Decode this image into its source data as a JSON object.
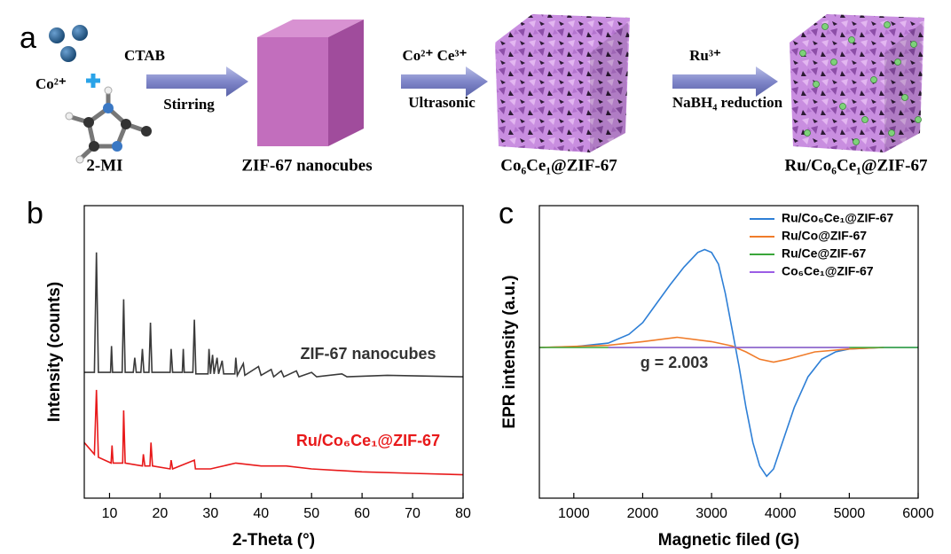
{
  "schematic": {
    "panel_label": "a",
    "reagent_1": "CTAB",
    "reagent_2": "Co²⁺",
    "ligand": "2-MI",
    "step_1": "Stirring",
    "product_1": "ZIF-67 nanocubes",
    "reagent_3": "Co²⁺ Ce³⁺",
    "step_2": "Ultrasonic",
    "product_2": "Co₆Ce₁@ZIF-67",
    "reagent_4": "Ru³⁺",
    "step_3": "NaBH₄ reduction",
    "product_3": "Ru/Co₆Ce₁@ZIF-67"
  },
  "chart_data": [
    {
      "type": "line",
      "panel_label": "b",
      "xlabel": "2-Theta (°)",
      "ylabel": "Intensity (counts)",
      "xlim": [
        5,
        80
      ],
      "ylim": [
        0,
        100
      ],
      "xticks": [
        10,
        20,
        30,
        40,
        50,
        60,
        70,
        80
      ],
      "annotations": [
        {
          "text": "ZIF-67 nanocubes",
          "color": "#333333"
        },
        {
          "text": "Ru/Co₆Ce₁@ZIF-67",
          "color": "#e8191a"
        }
      ],
      "series": [
        {
          "name": "ZIF-67 nanocubes",
          "color": "#3a3a3a",
          "x": [
            5,
            7.0,
            7.4,
            7.8,
            10.2,
            10.4,
            10.6,
            12.5,
            12.8,
            13.1,
            14.7,
            15,
            15.3,
            16.2,
            16.5,
            16.8,
            17.8,
            18.1,
            18.4,
            22,
            22.2,
            22.5,
            24.4,
            24.6,
            24.8,
            26.5,
            26.8,
            27.1,
            29.5,
            29.7,
            30,
            30.4,
            30.7,
            31.3,
            31.6,
            32.3,
            32.6,
            34.8,
            35,
            35.3,
            36.5,
            36.8,
            39.5,
            40,
            42,
            42.5,
            44,
            44.5,
            47,
            47.5,
            50,
            51,
            56,
            57,
            65,
            80
          ],
          "values": [
            43,
            43,
            84,
            43,
            43,
            52,
            43,
            43,
            68,
            43,
            43,
            48,
            43,
            43,
            51,
            43,
            43,
            60,
            43,
            43,
            51,
            43,
            43,
            51,
            43,
            43,
            61,
            42.5,
            42.5,
            51,
            42.5,
            49,
            42.5,
            48,
            42.5,
            47,
            42.5,
            42.5,
            48,
            42,
            46,
            42,
            45,
            42,
            44,
            41.5,
            43.5,
            41.5,
            43.5,
            41.5,
            43,
            41.5,
            42.5,
            41.5,
            42,
            41.5
          ]
        },
        {
          "name": "Ru/Co₆Ce₁@ZIF-67",
          "color": "#e8191a",
          "x": [
            5,
            7,
            7.4,
            7.8,
            10.3,
            10.5,
            10.7,
            12.6,
            12.8,
            13.1,
            16.5,
            16.7,
            17,
            18,
            18.2,
            18.5,
            22,
            22.2,
            22.5,
            26.8,
            27,
            30,
            35,
            40,
            45,
            50,
            60,
            70,
            80
          ],
          "values": [
            19,
            15,
            37,
            14,
            12,
            18,
            12,
            12,
            30,
            12,
            11,
            15,
            11,
            11,
            19,
            11,
            10,
            13,
            10,
            13,
            10,
            10,
            12,
            11,
            11,
            10,
            9,
            8.5,
            8
          ]
        }
      ]
    },
    {
      "type": "line",
      "panel_label": "c",
      "xlabel": "Magnetic filed (G)",
      "ylabel": "EPR intensity (a.u.)",
      "xlim": [
        500,
        6000
      ],
      "ylim": [
        -100,
        100
      ],
      "xticks": [
        1000,
        2000,
        3000,
        4000,
        5000,
        6000
      ],
      "legend": "upper right",
      "annotations": [
        {
          "text": "g = 2.003",
          "color": "#333333"
        }
      ],
      "series": [
        {
          "name": "Ru/Co₆Ce₁@ZIF-67",
          "color": "#2e7fd6",
          "x": [
            500,
            1000,
            1500,
            1800,
            2000,
            2200,
            2400,
            2600,
            2800,
            2900,
            3000,
            3100,
            3200,
            3300,
            3400,
            3500,
            3600,
            3700,
            3800,
            3900,
            4000,
            4200,
            4400,
            4600,
            4800,
            5000,
            5500,
            6000
          ],
          "values": [
            3,
            3.5,
            6,
            12,
            20,
            33,
            46,
            58,
            68,
            70,
            68,
            60,
            40,
            15,
            -10,
            -38,
            -62,
            -78,
            -85,
            -80,
            -66,
            -38,
            -17,
            -5,
            0,
            2,
            3,
            3
          ]
        },
        {
          "name": "Ru/Co@ZIF-67",
          "color": "#f07c2a",
          "x": [
            500,
            1500,
            2000,
            2500,
            3000,
            3300,
            3500,
            3700,
            3900,
            4100,
            4500,
            5000,
            5500
          ],
          "values": [
            3,
            4.5,
            7,
            10,
            7,
            4,
            0,
            -5,
            -7,
            -5,
            0,
            2,
            3
          ]
        },
        {
          "name": "Ru/Ce@ZIF-67",
          "color": "#3aa63a",
          "x": [
            500,
            6000
          ],
          "values": [
            3,
            3
          ]
        },
        {
          "name": "Co₆Ce₁@ZIF-67",
          "color": "#9b5de5",
          "x": [
            1500,
            5000
          ],
          "values": [
            3,
            3
          ]
        }
      ]
    }
  ]
}
